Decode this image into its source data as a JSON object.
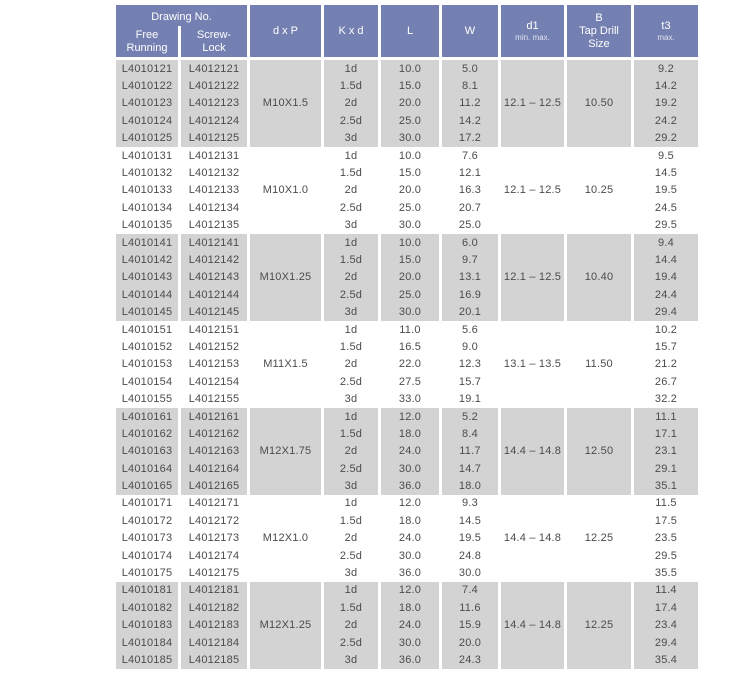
{
  "header": {
    "drawing_no": "Drawing No.",
    "free_running": "Free\nRunning",
    "screw_lock": "Screw-\nLock",
    "dxp": "d x P",
    "kxd": "K x d",
    "l": "L",
    "w": "W",
    "d1": "d1",
    "d1_sub": "min. max.",
    "b": "B",
    "b_sub": "Tap Drill\nSize",
    "t3": "t3",
    "t3_sub": "max.",
    "header_color": "#7580b2",
    "shade_color": "#d3d3d3"
  },
  "groups": [
    {
      "dxp": "M10X1.5",
      "d1": "12.1 – 12.5",
      "tap_drill": "10.50",
      "free": [
        "L4010121",
        "L4010122",
        "L4010123",
        "L4010124",
        "L4010125"
      ],
      "screw": [
        "L4012121",
        "L4012122",
        "L4012123",
        "L4012124",
        "L4012125"
      ],
      "kxd": [
        "1d",
        "1.5d",
        "2d",
        "2.5d",
        "3d"
      ],
      "l": [
        "10.0",
        "15.0",
        "20.0",
        "25.0",
        "30.0"
      ],
      "w": [
        "5.0",
        "8.1",
        "11.2",
        "14.2",
        "17.2"
      ],
      "t3": [
        "9.2",
        "14.2",
        "19.2",
        "24.2",
        "29.2"
      ]
    },
    {
      "dxp": "M10X1.0",
      "d1": "12.1 – 12.5",
      "tap_drill": "10.25",
      "free": [
        "L4010131",
        "L4010132",
        "L4010133",
        "L4010134",
        "L4010135"
      ],
      "screw": [
        "L4012131",
        "L4012132",
        "L4012133",
        "L4012134",
        "L4012135"
      ],
      "kxd": [
        "1d",
        "1.5d",
        "2d",
        "2.5d",
        "3d"
      ],
      "l": [
        "10.0",
        "15.0",
        "20.0",
        "25.0",
        "30.0"
      ],
      "w": [
        "7.6",
        "12.1",
        "16.3",
        "20.7",
        "25.0"
      ],
      "t3": [
        "9.5",
        "14.5",
        "19.5",
        "24.5",
        "29.5"
      ]
    },
    {
      "dxp": "M10X1.25",
      "d1": "12.1 – 12.5",
      "tap_drill": "10.40",
      "free": [
        "L4010141",
        "L4010142",
        "L4010143",
        "L4010144",
        "L4010145"
      ],
      "screw": [
        "L4012141",
        "L4012142",
        "L4012143",
        "L4012144",
        "L4012145"
      ],
      "kxd": [
        "1d",
        "1.5d",
        "2d",
        "2.5d",
        "3d"
      ],
      "l": [
        "10.0",
        "15.0",
        "20.0",
        "25.0",
        "30.0"
      ],
      "w": [
        "6.0",
        "9.7",
        "13.1",
        "16.9",
        "20.1"
      ],
      "t3": [
        "9.4",
        "14.4",
        "19.4",
        "24.4",
        "29.4"
      ]
    },
    {
      "dxp": "M11X1.5",
      "d1": "13.1 – 13.5",
      "tap_drill": "11.50",
      "free": [
        "L4010151",
        "L4010152",
        "L4010153",
        "L4010154",
        "L4010155"
      ],
      "screw": [
        "L4012151",
        "L4012152",
        "L4012153",
        "L4012154",
        "L4012155"
      ],
      "kxd": [
        "1d",
        "1.5d",
        "2d",
        "2.5d",
        "3d"
      ],
      "l": [
        "11.0",
        "16.5",
        "22.0",
        "27.5",
        "33.0"
      ],
      "w": [
        "5.6",
        "9.0",
        "12.3",
        "15.7",
        "19.1"
      ],
      "t3": [
        "10.2",
        "15.7",
        "21.2",
        "26.7",
        "32.2"
      ]
    },
    {
      "dxp": "M12X1.75",
      "d1": "14.4 – 14.8",
      "tap_drill": "12.50",
      "free": [
        "L4010161",
        "L4010162",
        "L4010163",
        "L4010164",
        "L4010165"
      ],
      "screw": [
        "L4012161",
        "L4012162",
        "L4012163",
        "L4012164",
        "L4012165"
      ],
      "kxd": [
        "1d",
        "1.5d",
        "2d",
        "2.5d",
        "3d"
      ],
      "l": [
        "12.0",
        "18.0",
        "24.0",
        "30.0",
        "36.0"
      ],
      "w": [
        "5.2",
        "8.4",
        "11.7",
        "14.7",
        "18.0"
      ],
      "t3": [
        "11.1",
        "17.1",
        "23.1",
        "29.1",
        "35.1"
      ]
    },
    {
      "dxp": "M12X1.0",
      "d1": "14.4 – 14.8",
      "tap_drill": "12.25",
      "free": [
        "L4010171",
        "L4010172",
        "L4010173",
        "L4010174",
        "L4010175"
      ],
      "screw": [
        "L4012171",
        "L4012172",
        "L4012173",
        "L4012174",
        "L4012175"
      ],
      "kxd": [
        "1d",
        "1.5d",
        "2d",
        "2.5d",
        "3d"
      ],
      "l": [
        "12.0",
        "18.0",
        "24.0",
        "30.0",
        "36.0"
      ],
      "w": [
        "9.3",
        "14.5",
        "19.5",
        "24.8",
        "30.0"
      ],
      "t3": [
        "11.5",
        "17.5",
        "23.5",
        "29.5",
        "35.5"
      ]
    },
    {
      "dxp": "M12X1.25",
      "d1": "14.4 – 14.8",
      "tap_drill": "12.25",
      "free": [
        "L4010181",
        "L4010182",
        "L4010183",
        "L4010184",
        "L4010185"
      ],
      "screw": [
        "L4012181",
        "L4012182",
        "L4012183",
        "L4012184",
        "L4012185"
      ],
      "kxd": [
        "1d",
        "1.5d",
        "2d",
        "2.5d",
        "3d"
      ],
      "l": [
        "12.0",
        "18.0",
        "24.0",
        "30.0",
        "36.0"
      ],
      "w": [
        "7.4",
        "11.6",
        "15.9",
        "20.0",
        "24.3"
      ],
      "t3": [
        "11.4",
        "17.4",
        "23.4",
        "29.4",
        "35.4"
      ]
    }
  ]
}
